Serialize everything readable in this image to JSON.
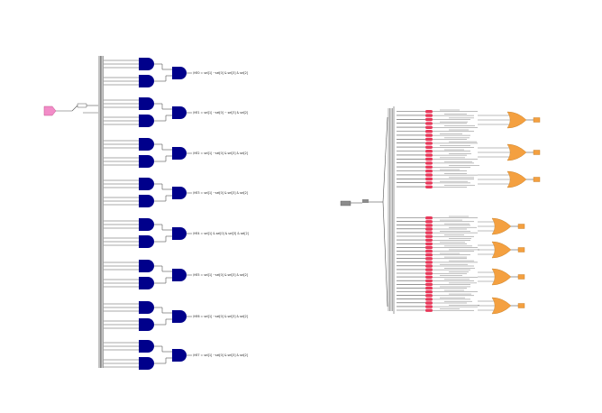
{
  "colors": {
    "background": "#ffffff",
    "wire": "#555555",
    "and_gate_fill": "#00008b",
    "or_gate_fill": "#f4a040",
    "input_port_fill": "#f28cc8",
    "output_port_fill": "#f4a040",
    "red_element_fill": "#e8385a",
    "gray_block_fill": "#8c8c8c"
  },
  "left_schematic": {
    "input_port": {
      "icon": "input-port-icon"
    },
    "groups": [
      {
        "output_label": "\\HE0 = sel[1] ~sel[0] & sel[3] & sel[2]"
      },
      {
        "output_label": "\\HE1 = sel[1] ~sel[0] ~ sel[3] & sel[2]"
      },
      {
        "output_label": "\\HE2 = sel[1] ~sel[0] & sel[3] & sel[2]"
      },
      {
        "output_label": "\\HE3 = sel[1] ~sel[0] & sel[3] & sel[2]"
      },
      {
        "output_label": "\\HE4 = sel[1] & sel[0] & sel[3] & sel[2]"
      },
      {
        "output_label": "\\HE5 = sel[1] ~sel[0] & sel[3] & sel[2]"
      },
      {
        "output_label": "\\HE6 = sel[1] ~sel[0] & sel[3] & sel[2]"
      },
      {
        "output_label": "\\HE7 = sel[1] ~sel[0] & sel[3] & sel[2]"
      }
    ]
  },
  "right_schematic": {
    "input_block": {
      "icon": "gray-input-block-icon"
    },
    "or_gate_count": 7,
    "red_element_count": 52
  }
}
